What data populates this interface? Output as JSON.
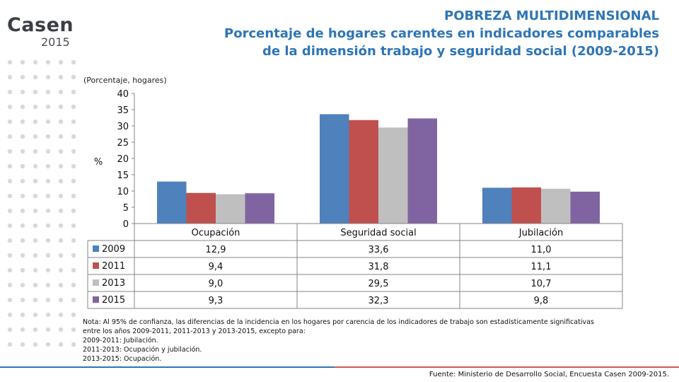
{
  "logo": {
    "name": "Casen",
    "year": "2015"
  },
  "header": {
    "title": "POBREZA MULTIDIMENSIONAL",
    "subtitle_line1": "Porcentaje de hogares carentes en indicadores comparables",
    "subtitle_line2": "de la dimensión trabajo y seguridad social (2009-2015)"
  },
  "unit_label": "(Porcentaje, hogares)",
  "colors": {
    "accent": "#2e75b6",
    "footer_red": "#d05a55",
    "dots": "#d9d9d9"
  },
  "chart_data": {
    "type": "bar",
    "ylabel": "%",
    "ylim": [
      0,
      40
    ],
    "yticks": [
      0,
      5,
      10,
      15,
      20,
      25,
      30,
      35,
      40
    ],
    "categories": [
      "Ocupación",
      "Seguridad social",
      "Jubilación"
    ],
    "series": [
      {
        "name": "2009",
        "color": "#4f81bd",
        "values": [
          12.9,
          33.6,
          11.0
        ],
        "labels": [
          "12,9",
          "33,6",
          "11,0"
        ]
      },
      {
        "name": "2011",
        "color": "#c0504d",
        "values": [
          9.4,
          31.8,
          11.1
        ],
        "labels": [
          "9,4",
          "31,8",
          "11,1"
        ]
      },
      {
        "name": "2013",
        "color": "#bfbfbf",
        "values": [
          9.0,
          29.5,
          10.7
        ],
        "labels": [
          "9,0",
          "29,5",
          "10,7"
        ]
      },
      {
        "name": "2015",
        "color": "#8064a2",
        "values": [
          9.3,
          32.3,
          9.8
        ],
        "labels": [
          "9,3",
          "32,3",
          "9,8"
        ]
      }
    ],
    "grid": false,
    "legend": "data-table"
  },
  "notes": {
    "line1": "Nota: Al 95% de confianza, las diferencias de la incidencia en los hogares por carencia de los indicadores de trabajo son estadísticamente significativas",
    "line2": "entre los años 2009-2011, 2011-2013 y 2013-2015, excepto para:",
    "line3": "2009-2011: Jubilación.",
    "line4": "2011-2013: Ocupación y jubilación.",
    "line5": "2013-2015: Ocupación."
  },
  "source": "Fuente: Ministerio de Desarrollo Social, Encuesta Casen 2009-2015."
}
